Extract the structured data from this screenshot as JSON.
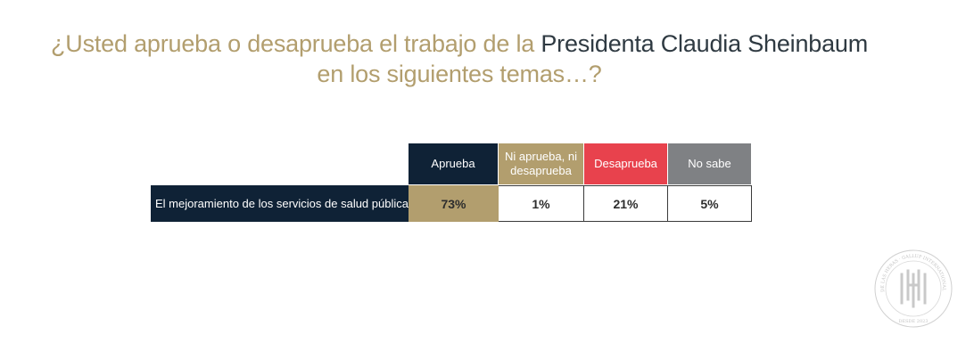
{
  "title": {
    "part1": "¿Usted aprueba o desaprueba el trabajo de la ",
    "part2": "Presidenta Claudia Sheinbaum",
    "part3": "en los siguientes temas…?"
  },
  "chart_data": {
    "type": "table",
    "columns": [
      "Aprueba",
      "Ni aprueba, ni desaprueba",
      "Desaprueba",
      "No sabe"
    ],
    "column_colors": [
      "#0f2236",
      "#b29e6e",
      "#e8424d",
      "#7f8184"
    ],
    "rows": [
      {
        "label": "El mejoramiento de los servicios de salud pública",
        "values": [
          "73%",
          "1%",
          "21%",
          "5%"
        ],
        "highlight_color": "#b29e6e"
      }
    ]
  },
  "logo": {
    "ring_text": "DE LAS HERAS · GALLUP INTERNATIONAL MEMBER",
    "year_text": "DESDE 2023"
  }
}
